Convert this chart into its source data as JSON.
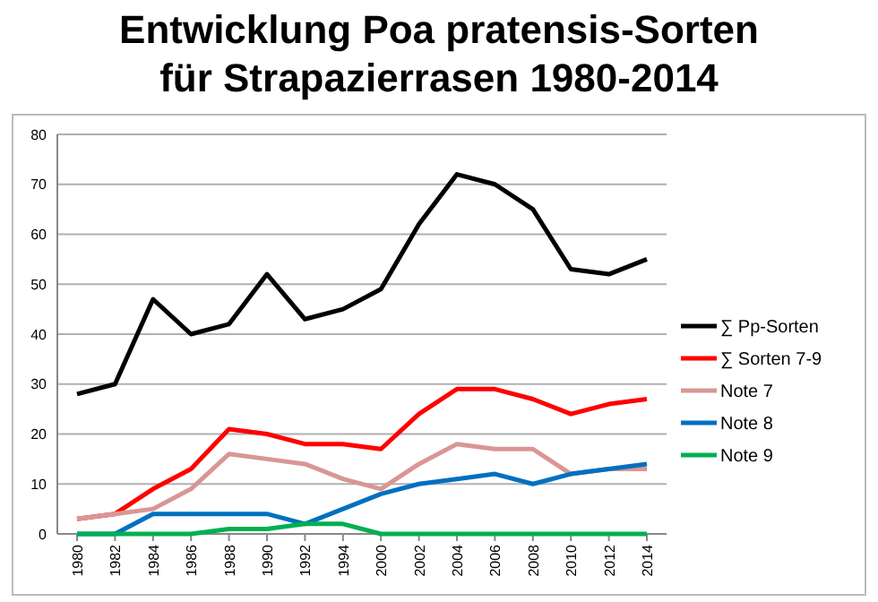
{
  "chart_data": {
    "type": "line",
    "title": "Entwicklung Poa pratensis-Sorten\nfür Strapazierrasen 1980-2014",
    "categories": [
      "1980",
      "1982",
      "1984",
      "1986",
      "1988",
      "1990",
      "1992",
      "1994",
      "2000",
      "2002",
      "2004",
      "2006",
      "2008",
      "2010",
      "2012",
      "2014"
    ],
    "series": [
      {
        "name": "∑ Pp-Sorten",
        "color": "#000000",
        "values": [
          28,
          30,
          47,
          40,
          42,
          52,
          43,
          45,
          49,
          62,
          72,
          70,
          65,
          53,
          52,
          55
        ]
      },
      {
        "name": "∑ Sorten 7-9",
        "color": "#ff0000",
        "values": [
          3,
          4,
          9,
          13,
          21,
          20,
          18,
          18,
          17,
          24,
          29,
          29,
          27,
          24,
          26,
          27
        ]
      },
      {
        "name": "Note 7",
        "color": "#d99694",
        "values": [
          3,
          4,
          5,
          9,
          16,
          15,
          14,
          11,
          9,
          14,
          18,
          17,
          17,
          12,
          13,
          13
        ]
      },
      {
        "name": "Note 8",
        "color": "#0070c0",
        "values": [
          0,
          0,
          4,
          4,
          4,
          4,
          2,
          5,
          8,
          10,
          11,
          12,
          10,
          12,
          13,
          14
        ]
      },
      {
        "name": "Note 9",
        "color": "#00b050",
        "values": [
          0,
          0,
          0,
          0,
          1,
          1,
          2,
          2,
          0,
          0,
          0,
          0,
          0,
          0,
          0,
          0
        ]
      }
    ],
    "ylim": [
      0,
      80
    ],
    "yticks": [
      0,
      10,
      20,
      30,
      40,
      50,
      60,
      70,
      80
    ],
    "grid": "y",
    "legend": "right",
    "marker": "none",
    "line_style": "solid"
  }
}
